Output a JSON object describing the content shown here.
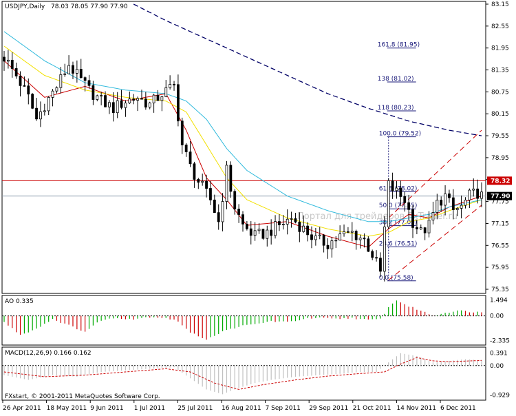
{
  "window": {
    "title": "USDJPY,Daily",
    "ohlc": "78.03 78.05 77.90 77.90",
    "copyright": "FXstart, © 2001-2011 MetaQuotes Software Corp.",
    "watermark": "Портал для трейдеров FxTrader.ru"
  },
  "colors": {
    "candle": "#000000",
    "ma_fast": "#cc0000",
    "ma_mid": "#f2e000",
    "ma_slow": "#33bbdd",
    "ma_long": "#000066",
    "fib": "#1a1a7a",
    "channel": "#cc0000",
    "resistance": "#cc0000",
    "current_price_line": "#8899aa",
    "ao_up": "#00aa00",
    "ao_down": "#cc0000",
    "macd_hist": "#c0c0c0",
    "macd_signal": "#cc0000",
    "price_tag_red": "#cc0000",
    "price_tag_black": "#000000"
  },
  "chart_data": [
    {
      "type": "candlestick",
      "symbol": "USDJPY",
      "timeframe": "Daily",
      "x_labels": [
        "26 Apr 2011",
        "18 May 2011",
        "9 Jun 2011",
        "1 Jul 2011",
        "25 Jul 2011",
        "16 Aug 2011",
        "7 Sep 2011",
        "29 Sep 2011",
        "21 Oct 2011",
        "14 Nov 2011",
        "6 Dec 2011"
      ],
      "y_ticks": [
        "83.15",
        "82.55",
        "81.95",
        "81.35",
        "80.75",
        "80.15",
        "79.55",
        "78.95",
        "78.35",
        "77.75",
        "77.15",
        "76.55",
        "75.95",
        "75.35"
      ],
      "ylim": [
        75.35,
        83.15
      ],
      "close_path": [
        [
          0,
          81.7
        ],
        [
          3,
          81.2
        ],
        [
          6,
          80.6
        ],
        [
          8,
          80.0
        ],
        [
          10,
          80.4
        ],
        [
          13,
          80.9
        ],
        [
          16,
          81.5
        ],
        [
          18,
          81.2
        ],
        [
          21,
          80.8
        ],
        [
          24,
          80.5
        ],
        [
          27,
          80.3
        ],
        [
          30,
          80.5
        ],
        [
          33,
          80.6
        ],
        [
          36,
          80.4
        ],
        [
          39,
          80.7
        ],
        [
          42,
          80.9
        ],
        [
          44,
          79.3
        ],
        [
          46,
          78.7
        ],
        [
          48,
          78.3
        ],
        [
          51,
          77.8
        ],
        [
          53,
          77.2
        ],
        [
          55,
          78.6
        ],
        [
          57,
          77.6
        ],
        [
          59,
          77.1
        ],
        [
          62,
          76.8
        ],
        [
          65,
          76.9
        ],
        [
          68,
          77.1
        ],
        [
          71,
          77.3
        ],
        [
          74,
          77.0
        ],
        [
          77,
          76.7
        ],
        [
          80,
          76.6
        ],
        [
          83,
          76.8
        ],
        [
          86,
          76.9
        ],
        [
          89,
          76.7
        ],
        [
          91,
          76.3
        ],
        [
          93,
          75.8
        ],
        [
          95,
          78.2
        ],
        [
          97,
          78.0
        ],
        [
          99,
          77.8
        ],
        [
          101,
          77.2
        ],
        [
          103,
          76.9
        ],
        [
          105,
          77.1
        ],
        [
          107,
          77.7
        ],
        [
          109,
          77.9
        ],
        [
          111,
          77.5
        ],
        [
          113,
          77.6
        ],
        [
          115,
          77.9
        ],
        [
          117,
          78.0
        ],
        [
          118,
          77.9
        ]
      ],
      "moving_averages": [
        {
          "name": "MA fast",
          "values": [
            [
              0,
              81.6
            ],
            [
              10,
              80.6
            ],
            [
              20,
              80.9
            ],
            [
              30,
              80.5
            ],
            [
              40,
              80.7
            ],
            [
              45,
              79.7
            ],
            [
              50,
              78.4
            ],
            [
              55,
              77.8
            ],
            [
              60,
              77.1
            ],
            [
              70,
              77.2
            ],
            [
              80,
              76.8
            ],
            [
              90,
              76.5
            ],
            [
              95,
              77.0
            ],
            [
              100,
              77.4
            ],
            [
              105,
              77.3
            ],
            [
              110,
              77.6
            ],
            [
              118,
              77.9
            ]
          ]
        },
        {
          "name": "MA mid",
          "values": [
            [
              0,
              82.0
            ],
            [
              10,
              81.2
            ],
            [
              20,
              80.8
            ],
            [
              30,
              80.6
            ],
            [
              40,
              80.5
            ],
            [
              45,
              80.2
            ],
            [
              50,
              79.3
            ],
            [
              55,
              78.4
            ],
            [
              60,
              77.8
            ],
            [
              70,
              77.3
            ],
            [
              80,
              77.0
            ],
            [
              90,
              76.8
            ],
            [
              95,
              76.9
            ],
            [
              100,
              77.2
            ],
            [
              105,
              77.3
            ],
            [
              110,
              77.5
            ],
            [
              118,
              77.8
            ]
          ]
        },
        {
          "name": "MA slow",
          "values": [
            [
              0,
              82.4
            ],
            [
              10,
              81.6
            ],
            [
              20,
              81.0
            ],
            [
              30,
              80.8
            ],
            [
              40,
              80.7
            ],
            [
              45,
              80.5
            ],
            [
              50,
              80.0
            ],
            [
              55,
              79.2
            ],
            [
              60,
              78.6
            ],
            [
              70,
              77.9
            ],
            [
              80,
              77.5
            ],
            [
              90,
              77.2
            ],
            [
              95,
              77.2
            ],
            [
              100,
              77.3
            ],
            [
              105,
              77.4
            ],
            [
              110,
              77.6
            ],
            [
              118,
              77.8
            ]
          ]
        },
        {
          "name": "MA long",
          "values": [
            [
              32,
              83.15
            ],
            [
              40,
              82.7
            ],
            [
              50,
              82.2
            ],
            [
              60,
              81.7
            ],
            [
              70,
              81.2
            ],
            [
              80,
              80.7
            ],
            [
              90,
              80.3
            ],
            [
              100,
              79.95
            ],
            [
              110,
              79.7
            ],
            [
              118,
              79.55
            ]
          ]
        }
      ],
      "fibonacci": [
        {
          "level": "161.8",
          "price": 81.95
        },
        {
          "level": "138",
          "price": 81.02
        },
        {
          "level": "118",
          "price": 80.23
        },
        {
          "level": "100.0",
          "price": 79.52
        },
        {
          "level": "61.8",
          "price": 78.02
        },
        {
          "level": "50.0",
          "price": 77.55
        },
        {
          "level": "38.2",
          "price": 77.09
        },
        {
          "level": "23.6",
          "price": 76.51
        },
        {
          "level": "0.0",
          "price": 75.58
        }
      ],
      "horizontal_lines": [
        {
          "name": "resistance",
          "price": 78.32,
          "tag": "78.32"
        },
        {
          "name": "current",
          "price": 77.9,
          "tag": "77.90"
        }
      ],
      "channel": {
        "upper": [
          [
            95,
            77.3
          ],
          [
            118,
            79.7
          ]
        ],
        "lower": [
          [
            95,
            75.6
          ],
          [
            118,
            77.65
          ]
        ]
      },
      "x_range": [
        0,
        118
      ]
    },
    {
      "type": "bar",
      "name": "AO",
      "title": "AO 0.335",
      "y_ticks": [
        "1.494",
        "0.00",
        "-2.335"
      ],
      "ylim": [
        -2.5,
        1.6
      ],
      "profile": [
        [
          0,
          -0.6
        ],
        [
          4,
          -1.8
        ],
        [
          8,
          -1.2
        ],
        [
          12,
          -0.3
        ],
        [
          16,
          -0.9
        ],
        [
          20,
          -1.5
        ],
        [
          24,
          -0.4
        ],
        [
          28,
          -0.2
        ],
        [
          32,
          -0.3
        ],
        [
          36,
          -0.1
        ],
        [
          40,
          -0.2
        ],
        [
          43,
          -0.5
        ],
        [
          46,
          -1.6
        ],
        [
          50,
          -2.2
        ],
        [
          54,
          -1.5
        ],
        [
          58,
          -1.0
        ],
        [
          62,
          -0.8
        ],
        [
          66,
          -0.5
        ],
        [
          70,
          -0.6
        ],
        [
          74,
          -0.3
        ],
        [
          78,
          -0.2
        ],
        [
          82,
          -0.3
        ],
        [
          86,
          -0.2
        ],
        [
          90,
          -0.4
        ],
        [
          93,
          -0.3
        ],
        [
          95,
          0.8
        ],
        [
          97,
          1.49
        ],
        [
          100,
          0.9
        ],
        [
          103,
          0.5
        ],
        [
          106,
          0.0
        ],
        [
          109,
          0.3
        ],
        [
          112,
          0.5
        ],
        [
          115,
          0.4
        ],
        [
          118,
          0.335
        ]
      ]
    },
    {
      "type": "bar",
      "name": "MACD",
      "title": "MACD(12,26,9) 0.166 0.162",
      "y_ticks": [
        "0.391",
        "0.00",
        "-0.929"
      ],
      "ylim": [
        -1.0,
        0.45
      ],
      "profile": [
        [
          0,
          -0.3
        ],
        [
          6,
          -0.45
        ],
        [
          12,
          -0.3
        ],
        [
          18,
          -0.35
        ],
        [
          24,
          -0.2
        ],
        [
          30,
          -0.15
        ],
        [
          36,
          -0.1
        ],
        [
          42,
          -0.05
        ],
        [
          46,
          -0.4
        ],
        [
          50,
          -0.75
        ],
        [
          54,
          -0.9
        ],
        [
          58,
          -0.7
        ],
        [
          62,
          -0.55
        ],
        [
          66,
          -0.45
        ],
        [
          72,
          -0.35
        ],
        [
          78,
          -0.3
        ],
        [
          84,
          -0.25
        ],
        [
          88,
          -0.2
        ],
        [
          92,
          -0.2
        ],
        [
          95,
          0.1
        ],
        [
          98,
          0.39
        ],
        [
          102,
          0.3
        ],
        [
          106,
          0.1
        ],
        [
          110,
          0.15
        ],
        [
          114,
          0.2
        ],
        [
          118,
          0.166
        ]
      ],
      "signal": [
        [
          0,
          -0.2
        ],
        [
          10,
          -0.35
        ],
        [
          20,
          -0.3
        ],
        [
          30,
          -0.2
        ],
        [
          40,
          -0.1
        ],
        [
          46,
          -0.2
        ],
        [
          52,
          -0.55
        ],
        [
          58,
          -0.75
        ],
        [
          64,
          -0.6
        ],
        [
          72,
          -0.45
        ],
        [
          80,
          -0.33
        ],
        [
          88,
          -0.25
        ],
        [
          94,
          -0.2
        ],
        [
          98,
          0.05
        ],
        [
          102,
          0.25
        ],
        [
          106,
          0.15
        ],
        [
          110,
          0.12
        ],
        [
          118,
          0.162
        ]
      ]
    }
  ]
}
